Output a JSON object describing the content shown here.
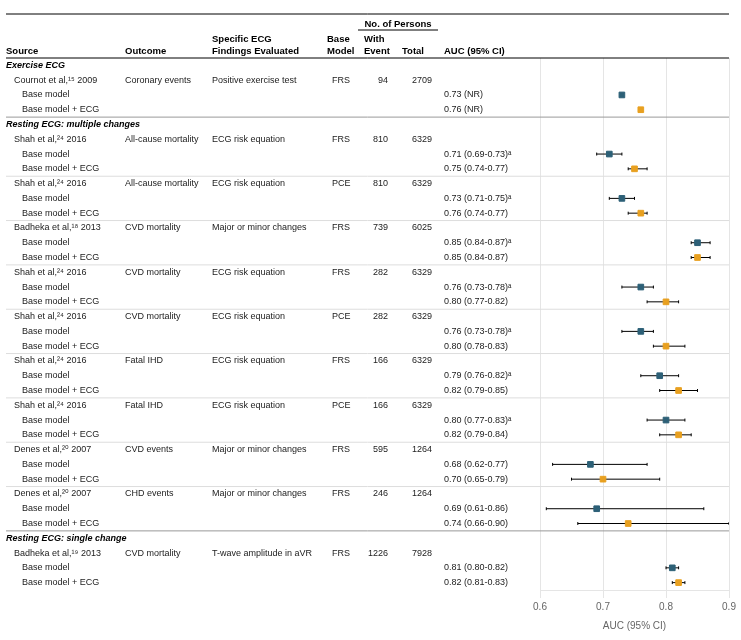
{
  "chart_data": {
    "type": "forest",
    "x_label": "AUC (95% CI)",
    "xlim": [
      0.6,
      0.9
    ],
    "xticks": [
      0.6,
      0.7,
      0.8,
      0.9
    ],
    "grid": true,
    "headers": {
      "source": "Source",
      "outcome": "Outcome",
      "ecg": [
        "Specific ECG",
        "Findings Evaluated"
      ],
      "base_model": [
        "Base",
        "Model"
      ],
      "persons": "No. of Persons",
      "with_event": [
        "With",
        "Event"
      ],
      "total": "Total",
      "auc": "AUC (95% CI)"
    },
    "rows": [
      {
        "type": "section",
        "label": "Exercise ECG"
      },
      {
        "type": "study",
        "source": "Cournot et al,¹⁵ 2009",
        "outcome": "Coronary events",
        "ecg": "Positive exercise test",
        "base_model": "FRS",
        "with_event": 94,
        "total": 2709
      },
      {
        "type": "data",
        "label": "Base model",
        "auc_text": "0.73 (NR)",
        "center": 0.73,
        "lower": null,
        "upper": null,
        "color": "#2d6077"
      },
      {
        "type": "data",
        "label": "Base model + ECG",
        "auc_text": "0.76 (NR)",
        "center": 0.76,
        "lower": null,
        "upper": null,
        "color": "#e8a020"
      },
      {
        "type": "section",
        "label": "Resting ECG: multiple changes"
      },
      {
        "type": "study",
        "source": "Shah et al,²⁴ 2016",
        "outcome": "All-cause mortality",
        "ecg": "ECG risk equation",
        "base_model": "FRS",
        "with_event": 810,
        "total": 6329
      },
      {
        "type": "data",
        "label": "Base model",
        "auc_text": "0.71 (0.69-0.73)ᵃ",
        "center": 0.71,
        "lower": 0.69,
        "upper": 0.73,
        "color": "#2d6077"
      },
      {
        "type": "data",
        "label": "Base model + ECG",
        "auc_text": "0.75 (0.74-0.77)",
        "center": 0.75,
        "lower": 0.74,
        "upper": 0.77,
        "color": "#e8a020"
      },
      {
        "type": "study",
        "source": "Shah et al,²⁴ 2016",
        "outcome": "All-cause mortality",
        "ecg": "ECG risk equation",
        "base_model": "PCE",
        "with_event": 810,
        "total": 6329
      },
      {
        "type": "data",
        "label": "Base model",
        "auc_text": "0.73 (0.71-0.75)ᵃ",
        "center": 0.73,
        "lower": 0.71,
        "upper": 0.75,
        "color": "#2d6077"
      },
      {
        "type": "data",
        "label": "Base model + ECG",
        "auc_text": "0.76 (0.74-0.77)",
        "center": 0.76,
        "lower": 0.74,
        "upper": 0.77,
        "color": "#e8a020"
      },
      {
        "type": "study",
        "source": "Badheka et al,¹⁸ 2013",
        "outcome": "CVD mortality",
        "ecg": "Major or minor changes",
        "base_model": "FRS",
        "with_event": 739,
        "total": 6025
      },
      {
        "type": "data",
        "label": "Base model",
        "auc_text": "0.85 (0.84-0.87)ᵃ",
        "center": 0.85,
        "lower": 0.84,
        "upper": 0.87,
        "color": "#2d6077"
      },
      {
        "type": "data",
        "label": "Base model + ECG",
        "auc_text": "0.85 (0.84-0.87)",
        "center": 0.85,
        "lower": 0.84,
        "upper": 0.87,
        "color": "#e8a020"
      },
      {
        "type": "study",
        "source": "Shah et al,²⁴ 2016",
        "outcome": "CVD mortality",
        "ecg": "ECG risk equation",
        "base_model": "FRS",
        "with_event": 282,
        "total": 6329
      },
      {
        "type": "data",
        "label": "Base model",
        "auc_text": "0.76 (0.73-0.78)ᵃ",
        "center": 0.76,
        "lower": 0.73,
        "upper": 0.78,
        "color": "#2d6077"
      },
      {
        "type": "data",
        "label": "Base model + ECG",
        "auc_text": "0.80 (0.77-0.82)",
        "center": 0.8,
        "lower": 0.77,
        "upper": 0.82,
        "color": "#e8a020"
      },
      {
        "type": "study",
        "source": "Shah et al,²⁴ 2016",
        "outcome": "CVD mortality",
        "ecg": "ECG risk equation",
        "base_model": "PCE",
        "with_event": 282,
        "total": 6329
      },
      {
        "type": "data",
        "label": "Base model",
        "auc_text": "0.76 (0.73-0.78)ᵃ",
        "center": 0.76,
        "lower": 0.73,
        "upper": 0.78,
        "color": "#2d6077"
      },
      {
        "type": "data",
        "label": "Base model + ECG",
        "auc_text": "0.80 (0.78-0.83)",
        "center": 0.8,
        "lower": 0.78,
        "upper": 0.83,
        "color": "#e8a020"
      },
      {
        "type": "study",
        "source": "Shah et al,²⁴ 2016",
        "outcome": "Fatal IHD",
        "ecg": "ECG risk equation",
        "base_model": "FRS",
        "with_event": 166,
        "total": 6329
      },
      {
        "type": "data",
        "label": "Base model",
        "auc_text": "0.79 (0.76-0.82)ᵃ",
        "center": 0.79,
        "lower": 0.76,
        "upper": 0.82,
        "color": "#2d6077"
      },
      {
        "type": "data",
        "label": "Base model + ECG",
        "auc_text": "0.82 (0.79-0.85)",
        "center": 0.82,
        "lower": 0.79,
        "upper": 0.85,
        "color": "#e8a020"
      },
      {
        "type": "study",
        "source": "Shah et al,²⁴ 2016",
        "outcome": "Fatal IHD",
        "ecg": "ECG risk equation",
        "base_model": "PCE",
        "with_event": 166,
        "total": 6329
      },
      {
        "type": "data",
        "label": "Base model",
        "auc_text": "0.80 (0.77-0.83)ᵃ",
        "center": 0.8,
        "lower": 0.77,
        "upper": 0.83,
        "color": "#2d6077"
      },
      {
        "type": "data",
        "label": "Base model + ECG",
        "auc_text": "0.82 (0.79-0.84)",
        "center": 0.82,
        "lower": 0.79,
        "upper": 0.84,
        "color": "#e8a020"
      },
      {
        "type": "study",
        "source": "Denes et al,²⁰ 2007",
        "outcome": "CVD events",
        "ecg": "Major or minor changes",
        "base_model": "FRS",
        "with_event": 595,
        "total": 1264
      },
      {
        "type": "data",
        "label": "Base model",
        "auc_text": "0.68 (0.62-0.77)",
        "center": 0.68,
        "lower": 0.62,
        "upper": 0.77,
        "color": "#2d6077"
      },
      {
        "type": "data",
        "label": "Base model + ECG",
        "auc_text": "0.70 (0.65-0.79)",
        "center": 0.7,
        "lower": 0.65,
        "upper": 0.79,
        "color": "#e8a020"
      },
      {
        "type": "study",
        "source": "Denes et al,²⁰ 2007",
        "outcome": "CHD events",
        "ecg": "Major or minor changes",
        "base_model": "FRS",
        "with_event": 246,
        "total": 1264
      },
      {
        "type": "data",
        "label": "Base model",
        "auc_text": "0.69 (0.61-0.86)",
        "center": 0.69,
        "lower": 0.61,
        "upper": 0.86,
        "color": "#2d6077"
      },
      {
        "type": "data",
        "label": "Base model + ECG",
        "auc_text": "0.74 (0.66-0.90)",
        "center": 0.74,
        "lower": 0.66,
        "upper": 0.9,
        "color": "#e8a020"
      },
      {
        "type": "section",
        "label": "Resting ECG: single change"
      },
      {
        "type": "study",
        "source": "Badheka et al,¹⁹ 2013",
        "outcome": "CVD mortality",
        "ecg": "T-wave amplitude in aVR",
        "base_model": "FRS",
        "with_event": 1226,
        "total": 7928
      },
      {
        "type": "data",
        "label": "Base model",
        "auc_text": "0.81 (0.80-0.82)",
        "center": 0.81,
        "lower": 0.8,
        "upper": 0.82,
        "color": "#2d6077"
      },
      {
        "type": "data",
        "label": "Base model + ECG",
        "auc_text": "0.82 (0.81-0.83)",
        "center": 0.82,
        "lower": 0.81,
        "upper": 0.83,
        "color": "#e8a020"
      }
    ]
  }
}
